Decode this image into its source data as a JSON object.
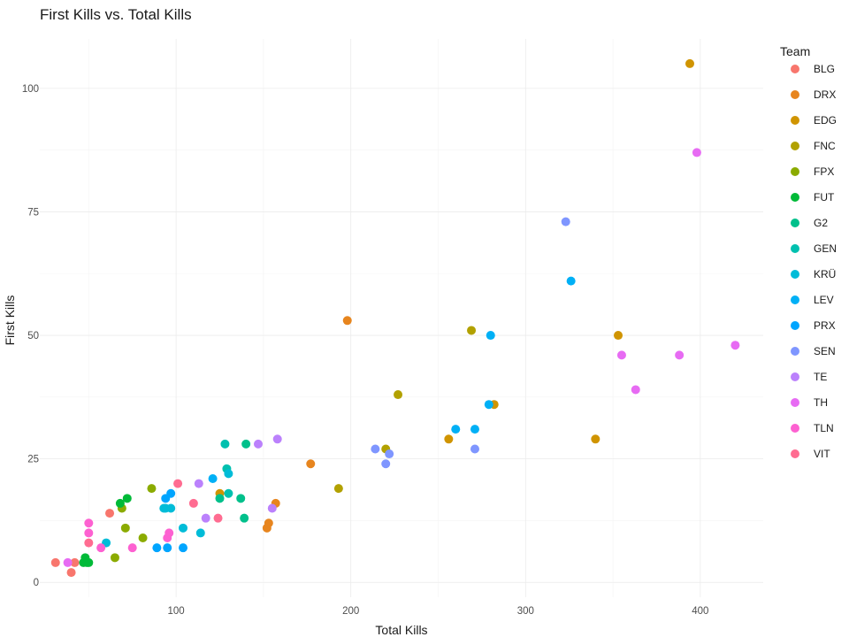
{
  "chart_data": {
    "type": "scatter",
    "title": "First Kills vs. Total Kills",
    "xlabel": "Total Kills",
    "ylabel": "First Kills",
    "xlim": [
      22,
      436
    ],
    "ylim": [
      -3,
      110
    ],
    "x_ticks": [
      100,
      200,
      300,
      400
    ],
    "y_ticks": [
      0,
      25,
      50,
      75,
      100
    ],
    "grid": true,
    "legend": {
      "title": "Team",
      "position": "right"
    },
    "series": [
      {
        "name": "BLG",
        "color": "#F8766D",
        "points": [
          [
            31,
            4
          ],
          [
            40,
            2
          ],
          [
            42,
            4
          ],
          [
            62,
            14
          ]
        ]
      },
      {
        "name": "DRX",
        "color": "#E7851E",
        "points": [
          [
            198,
            53
          ],
          [
            177,
            24
          ],
          [
            157,
            16
          ],
          [
            153,
            12
          ],
          [
            152,
            11
          ]
        ]
      },
      {
        "name": "EDG",
        "color": "#D09400",
        "points": [
          [
            394,
            105
          ],
          [
            353,
            50
          ],
          [
            340,
            29
          ],
          [
            282,
            36
          ],
          [
            256,
            29
          ],
          [
            125,
            18
          ]
        ]
      },
      {
        "name": "FNC",
        "color": "#B2A100",
        "points": [
          [
            269,
            51
          ],
          [
            227,
            38
          ],
          [
            220,
            27
          ],
          [
            193,
            19
          ]
        ]
      },
      {
        "name": "FPX",
        "color": "#8BAB00",
        "points": [
          [
            86,
            19
          ],
          [
            81,
            9
          ],
          [
            71,
            11
          ],
          [
            69,
            15
          ],
          [
            65,
            5
          ]
        ]
      },
      {
        "name": "FUT",
        "color": "#00BA38",
        "points": [
          [
            72,
            17
          ],
          [
            68,
            16
          ],
          [
            48,
            5
          ],
          [
            47,
            4
          ],
          [
            49,
            4
          ],
          [
            50,
            4
          ]
        ]
      },
      {
        "name": "G2",
        "color": "#00C08B",
        "points": [
          [
            140,
            28
          ],
          [
            125,
            17
          ],
          [
            139,
            13
          ],
          [
            137,
            17
          ]
        ]
      },
      {
        "name": "GEN",
        "color": "#00C0AF",
        "points": [
          [
            128,
            28
          ],
          [
            130,
            18
          ],
          [
            129,
            23
          ]
        ]
      },
      {
        "name": "KRÜ",
        "color": "#00BCD8",
        "points": [
          [
            130,
            22
          ],
          [
            114,
            10
          ],
          [
            104,
            11
          ],
          [
            97,
            15
          ],
          [
            93,
            15
          ],
          [
            60,
            8
          ],
          [
            94,
            15
          ]
        ]
      },
      {
        "name": "LEV",
        "color": "#00B0F6",
        "points": [
          [
            326,
            61
          ],
          [
            280,
            50
          ],
          [
            279,
            36
          ],
          [
            271,
            31
          ],
          [
            260,
            31
          ],
          [
            121,
            21
          ]
        ]
      },
      {
        "name": "PRX",
        "color": "#00A5FF",
        "points": [
          [
            97,
            18
          ],
          [
            94,
            17
          ],
          [
            89,
            7
          ],
          [
            95,
            7
          ],
          [
            104,
            7
          ]
        ]
      },
      {
        "name": "SEN",
        "color": "#7F96FF",
        "points": [
          [
            323,
            73
          ],
          [
            214,
            27
          ],
          [
            222,
            26
          ],
          [
            220,
            24
          ],
          [
            271,
            27
          ]
        ]
      },
      {
        "name": "TE",
        "color": "#BB81FC",
        "points": [
          [
            158,
            29
          ],
          [
            147,
            28
          ],
          [
            155,
            15
          ],
          [
            113,
            20
          ],
          [
            117,
            13
          ]
        ]
      },
      {
        "name": "TH",
        "color": "#E76BF3",
        "points": [
          [
            398,
            87
          ],
          [
            420,
            48
          ],
          [
            388,
            46
          ],
          [
            355,
            46
          ],
          [
            363,
            39
          ],
          [
            38,
            4
          ]
        ]
      },
      {
        "name": "TLN",
        "color": "#FD61D1",
        "points": [
          [
            50,
            12
          ],
          [
            50,
            10
          ],
          [
            57,
            7
          ],
          [
            75,
            7
          ],
          [
            96,
            10
          ],
          [
            95,
            9
          ]
        ]
      },
      {
        "name": "VIT",
        "color": "#FF6C91",
        "points": [
          [
            101,
            20
          ],
          [
            110,
            16
          ],
          [
            124,
            13
          ],
          [
            50,
            8
          ]
        ]
      }
    ]
  }
}
